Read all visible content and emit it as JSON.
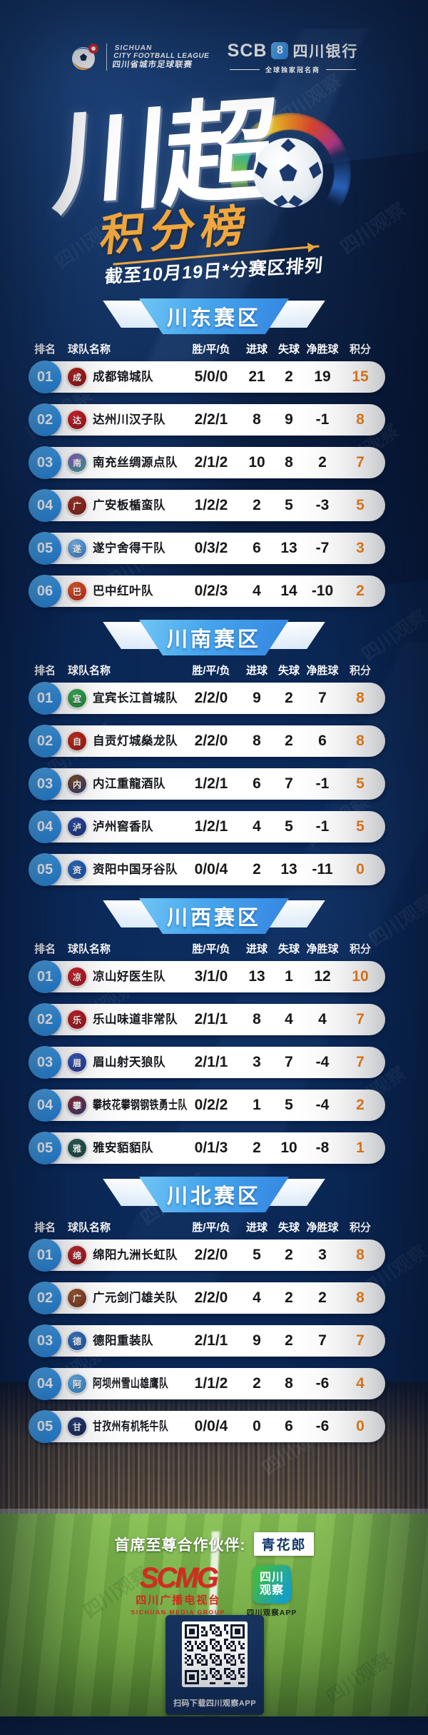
{
  "header": {
    "league_logo": {
      "line1": "SICHUAN",
      "line2": "CITY FOOTBALL LEAGUE",
      "line3": "四川省城市足球联赛"
    },
    "sponsor": {
      "abbr": "SCB",
      "mark": "8",
      "bank": "四川银行",
      "tagline": "全球独家冠名商"
    }
  },
  "title": {
    "main": "川超",
    "sub": "积分榜",
    "note": "截至10月19日*分赛区排列"
  },
  "table_headers": [
    "排名",
    "球队名称",
    "胜/平/负",
    "进球",
    "失球",
    "净胜球",
    "积分"
  ],
  "accent_colors": {
    "points_orange": "#f28018",
    "banner_blue": "#46a5ec",
    "gold": "#efa73e"
  },
  "watermark": "四川观察",
  "sections": [
    {
      "name": "川东赛区",
      "teams": [
        {
          "rank": "01",
          "name": "成都锦城队",
          "glyph": "成",
          "wdl": "5/0/0",
          "gf": 21,
          "ga": 2,
          "gd": 19,
          "pts": 15,
          "badge": [
            "#b5231f",
            "#7e1714"
          ]
        },
        {
          "rank": "02",
          "name": "达州川汉子队",
          "glyph": "达",
          "wdl": "2/2/1",
          "gf": 8,
          "ga": 9,
          "gd": -1,
          "pts": 8,
          "badge": [
            "#d2242b",
            "#8f1418"
          ]
        },
        {
          "rank": "03",
          "name": "南充丝绸源点队",
          "glyph": "南",
          "wdl": "2/1/2",
          "gf": 10,
          "ga": 8,
          "gd": 2,
          "pts": 7,
          "badge": [
            "#8a5bb8",
            "#2fa08e"
          ]
        },
        {
          "rank": "04",
          "name": "广安板楯蛮队",
          "glyph": "广",
          "wdl": "1/2/2",
          "gf": 2,
          "ga": 5,
          "gd": -3,
          "pts": 5,
          "badge": [
            "#a03326",
            "#6e1f16"
          ]
        },
        {
          "rank": "05",
          "name": "遂宁舍得干队",
          "glyph": "遂",
          "wdl": "0/3/2",
          "gf": 6,
          "ga": 13,
          "gd": -7,
          "pts": 3,
          "badge": [
            "#7db8e8",
            "#2b6fb8"
          ]
        },
        {
          "rank": "06",
          "name": "巴中红叶队",
          "glyph": "巴",
          "wdl": "0/2/3",
          "gf": 4,
          "ga": 14,
          "gd": -10,
          "pts": 2,
          "badge": [
            "#e05a2b",
            "#b02418"
          ]
        }
      ]
    },
    {
      "name": "川南赛区",
      "teams": [
        {
          "rank": "01",
          "name": "宜宾长江首城队",
          "glyph": "宜",
          "wdl": "2/2/0",
          "gf": 9,
          "ga": 2,
          "gd": 7,
          "pts": 8,
          "badge": [
            "#3fae57",
            "#1f7a38"
          ]
        },
        {
          "rank": "02",
          "name": "自贡灯城燊龙队",
          "glyph": "自",
          "wdl": "2/2/0",
          "gf": 8,
          "ga": 2,
          "gd": 6,
          "pts": 8,
          "badge": [
            "#c9301f",
            "#8c1a12"
          ]
        },
        {
          "rank": "03",
          "name": "内江重龍酒队",
          "glyph": "内",
          "wdl": "1/2/1",
          "gf": 6,
          "ga": 7,
          "gd": -1,
          "pts": 5,
          "badge": [
            "#7a4a26",
            "#2c3a75"
          ]
        },
        {
          "rank": "04",
          "name": "泸州窖香队",
          "glyph": "泸",
          "wdl": "1/2/1",
          "gf": 4,
          "ga": 5,
          "gd": -1,
          "pts": 5,
          "badge": [
            "#2f4fa8",
            "#1a2f6e"
          ]
        },
        {
          "rank": "05",
          "name": "资阳中国牙谷队",
          "glyph": "资",
          "wdl": "0/0/4",
          "gf": 2,
          "ga": 13,
          "gd": -11,
          "pts": 0,
          "badge": [
            "#2e6fc0",
            "#1a4a94"
          ]
        }
      ]
    },
    {
      "name": "川西赛区",
      "teams": [
        {
          "rank": "01",
          "name": "凉山好医生队",
          "glyph": "凉",
          "wdl": "3/1/0",
          "gf": 13,
          "ga": 1,
          "gd": 12,
          "pts": 10,
          "badge": [
            "#d0252b",
            "#8f161c"
          ]
        },
        {
          "rank": "02",
          "name": "乐山味道非常队",
          "glyph": "乐",
          "wdl": "2/1/1",
          "gf": 8,
          "ga": 4,
          "gd": 4,
          "pts": 7,
          "badge": [
            "#c2242a",
            "#8a1418"
          ]
        },
        {
          "rank": "03",
          "name": "眉山射天狼队",
          "glyph": "眉",
          "wdl": "2/1/1",
          "gf": 3,
          "ga": 7,
          "gd": -4,
          "pts": 7,
          "badge": [
            "#3a5ab8",
            "#22357e"
          ]
        },
        {
          "rank": "04",
          "name": "攀枝花攀钢钢铁勇士队",
          "glyph": "攀",
          "wdl": "0/2/2",
          "gf": 1,
          "ga": 5,
          "gd": -4,
          "pts": 2,
          "badge": [
            "#8c2a38",
            "#2c3a6e"
          ]
        },
        {
          "rank": "05",
          "name": "雅安貊貊队",
          "glyph": "雅",
          "wdl": "0/1/3",
          "gf": 2,
          "ga": 10,
          "gd": -8,
          "pts": 1,
          "badge": [
            "#2e6058",
            "#17403a"
          ]
        }
      ]
    },
    {
      "name": "川北赛区",
      "teams": [
        {
          "rank": "01",
          "name": "绵阳九洲长虹队",
          "glyph": "绵",
          "wdl": "2/2/0",
          "gf": 5,
          "ga": 2,
          "gd": 3,
          "pts": 8,
          "badge": [
            "#c22a30",
            "#881418"
          ]
        },
        {
          "rank": "02",
          "name": "广元剑门雄关队",
          "glyph": "广",
          "wdl": "2/2/0",
          "gf": 4,
          "ga": 2,
          "gd": 2,
          "pts": 8,
          "badge": [
            "#9c5a30",
            "#6e2a1a"
          ]
        },
        {
          "rank": "03",
          "name": "德阳重装队",
          "glyph": "德",
          "wdl": "2/1/1",
          "gf": 9,
          "ga": 2,
          "gd": 7,
          "pts": 7,
          "badge": [
            "#3a7ac2",
            "#1f4e94"
          ]
        },
        {
          "rank": "04",
          "name": "阿坝州雪山雄鹰队",
          "glyph": "阿",
          "wdl": "1/1/2",
          "gf": 2,
          "ga": 8,
          "gd": -6,
          "pts": 4,
          "badge": [
            "#6aaede",
            "#2f7ab8"
          ]
        },
        {
          "rank": "05",
          "name": "甘孜州有机牦牛队",
          "glyph": "甘",
          "wdl": "0/0/4",
          "gf": 0,
          "ga": 6,
          "gd": -6,
          "pts": 0,
          "badge": [
            "#2a3f78",
            "#15234a"
          ]
        }
      ]
    }
  ],
  "footer": {
    "partner_label": "首席至尊合作伙伴:",
    "partner_name": "青花郎",
    "scmg_mark": "SCMG",
    "scmg_cn": "四川广播电视台",
    "scmg_en": "SICHUAN MEDIA GROUP",
    "observer_line1": "四川",
    "observer_line2": "观察",
    "observer_caption": "四川观察APP",
    "qr_caption": "扫码下载四川观察APP"
  },
  "chart_data": [
    {
      "type": "table",
      "title": "川东赛区",
      "columns": [
        "排名",
        "球队名称",
        "胜/平/负",
        "进球",
        "失球",
        "净胜球",
        "积分"
      ],
      "rows": [
        [
          "01",
          "成都锦城队",
          "5/0/0",
          21,
          2,
          19,
          15
        ],
        [
          "02",
          "达州川汉子队",
          "2/2/1",
          8,
          9,
          -1,
          8
        ],
        [
          "03",
          "南充丝绸源点队",
          "2/1/2",
          10,
          8,
          2,
          7
        ],
        [
          "04",
          "广安板楯蛮队",
          "1/2/2",
          2,
          5,
          -3,
          5
        ],
        [
          "05",
          "遂宁舍得干队",
          "0/3/2",
          6,
          13,
          -7,
          3
        ],
        [
          "06",
          "巴中红叶队",
          "0/2/3",
          4,
          14,
          -10,
          2
        ]
      ]
    },
    {
      "type": "table",
      "title": "川南赛区",
      "columns": [
        "排名",
        "球队名称",
        "胜/平/负",
        "进球",
        "失球",
        "净胜球",
        "积分"
      ],
      "rows": [
        [
          "01",
          "宜宾长江首城队",
          "2/2/0",
          9,
          2,
          7,
          8
        ],
        [
          "02",
          "自贡灯城燊龙队",
          "2/2/0",
          8,
          2,
          6,
          8
        ],
        [
          "03",
          "内江重龍酒队",
          "1/2/1",
          6,
          7,
          -1,
          5
        ],
        [
          "04",
          "泸州窖香队",
          "1/2/1",
          4,
          5,
          -1,
          5
        ],
        [
          "05",
          "资阳中国牙谷队",
          "0/0/4",
          2,
          13,
          -11,
          0
        ]
      ]
    },
    {
      "type": "table",
      "title": "川西赛区",
      "columns": [
        "排名",
        "球队名称",
        "胜/平/负",
        "进球",
        "失球",
        "净胜球",
        "积分"
      ],
      "rows": [
        [
          "01",
          "凉山好医生队",
          "3/1/0",
          13,
          1,
          12,
          10
        ],
        [
          "02",
          "乐山味道非常队",
          "2/1/1",
          8,
          4,
          4,
          7
        ],
        [
          "03",
          "眉山射天狼队",
          "2/1/1",
          3,
          7,
          -4,
          7
        ],
        [
          "04",
          "攀枝花攀钢钢铁勇士队",
          "0/2/2",
          1,
          5,
          -4,
          2
        ],
        [
          "05",
          "雅安貊貊队",
          "0/1/3",
          2,
          10,
          -8,
          1
        ]
      ]
    },
    {
      "type": "table",
      "title": "川北赛区",
      "columns": [
        "排名",
        "球队名称",
        "胜/平/负",
        "进球",
        "失球",
        "净胜球",
        "积分"
      ],
      "rows": [
        [
          "01",
          "绵阳九洲长虹队",
          "2/2/0",
          5,
          2,
          3,
          8
        ],
        [
          "02",
          "广元剑门雄关队",
          "2/2/0",
          4,
          2,
          2,
          8
        ],
        [
          "03",
          "德阳重装队",
          "2/1/1",
          9,
          2,
          7,
          7
        ],
        [
          "04",
          "阿坝州雪山雄鹰队",
          "1/1/2",
          2,
          8,
          -6,
          4
        ],
        [
          "05",
          "甘孜州有机牦牛队",
          "0/0/4",
          0,
          6,
          -6,
          0
        ]
      ]
    }
  ]
}
